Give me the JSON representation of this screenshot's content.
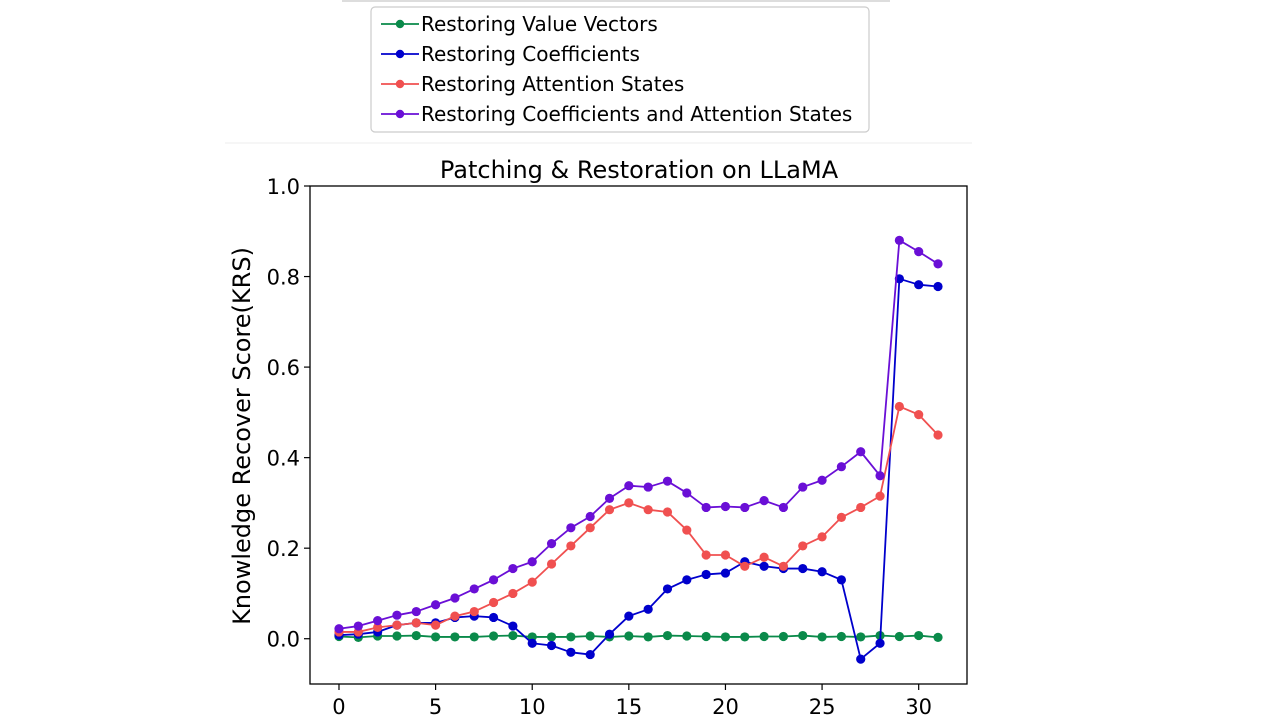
{
  "chart_data": {
    "type": "line",
    "title": "Patching & Restoration on LLaMA",
    "xlabel": "",
    "ylabel": "Knowledge Recover Score(KRS)",
    "xlim": [
      -1.5,
      32.5
    ],
    "ylim": [
      -0.1,
      1.0
    ],
    "xticks": [
      "0",
      "5",
      "10",
      "15",
      "20",
      "25",
      "30"
    ],
    "yticks": [
      "0.0",
      "0.2",
      "0.4",
      "0.6",
      "0.8",
      "1.0"
    ],
    "grid": false,
    "legend_position": "top",
    "x": [
      0,
      1,
      2,
      3,
      4,
      5,
      6,
      7,
      8,
      9,
      10,
      11,
      12,
      13,
      14,
      15,
      16,
      17,
      18,
      19,
      20,
      21,
      22,
      23,
      24,
      25,
      26,
      27,
      28,
      29,
      30,
      31
    ],
    "series": [
      {
        "name": "Restoring Value Vectors",
        "color": "#0a8a4a",
        "values": [
          0.005,
          0.003,
          0.006,
          0.006,
          0.007,
          0.004,
          0.004,
          0.004,
          0.006,
          0.007,
          0.004,
          0.004,
          0.004,
          0.006,
          0.004,
          0.006,
          0.004,
          0.007,
          0.006,
          0.005,
          0.004,
          0.004,
          0.005,
          0.005,
          0.007,
          0.004,
          0.005,
          0.004,
          0.007,
          0.005,
          0.007,
          0.003
        ]
      },
      {
        "name": "Restoring Coefficients",
        "color": "#0000cc",
        "values": [
          0.008,
          0.01,
          0.015,
          0.03,
          0.035,
          0.035,
          0.047,
          0.05,
          0.047,
          0.028,
          -0.01,
          -0.015,
          -0.03,
          -0.035,
          0.01,
          0.05,
          0.065,
          0.11,
          0.13,
          0.142,
          0.145,
          0.17,
          0.16,
          0.155,
          0.155,
          0.148,
          0.13,
          -0.045,
          -0.01,
          0.795,
          0.782,
          0.778
        ]
      },
      {
        "name": "Restoring Attention States",
        "color": "#f05050",
        "values": [
          0.015,
          0.015,
          0.025,
          0.03,
          0.035,
          0.03,
          0.05,
          0.06,
          0.08,
          0.1,
          0.125,
          0.165,
          0.205,
          0.245,
          0.285,
          0.3,
          0.285,
          0.28,
          0.24,
          0.185,
          0.185,
          0.16,
          0.18,
          0.16,
          0.205,
          0.225,
          0.268,
          0.29,
          0.315,
          0.513,
          0.495,
          0.45
        ]
      },
      {
        "name": "Restoring Coefficients and Attention States",
        "color": "#6a0fd6",
        "values": [
          0.022,
          0.028,
          0.04,
          0.052,
          0.06,
          0.075,
          0.09,
          0.11,
          0.13,
          0.155,
          0.17,
          0.21,
          0.245,
          0.27,
          0.31,
          0.338,
          0.335,
          0.348,
          0.322,
          0.29,
          0.292,
          0.29,
          0.305,
          0.29,
          0.335,
          0.35,
          0.38,
          0.413,
          0.36,
          0.88,
          0.855,
          0.828
        ]
      }
    ]
  }
}
